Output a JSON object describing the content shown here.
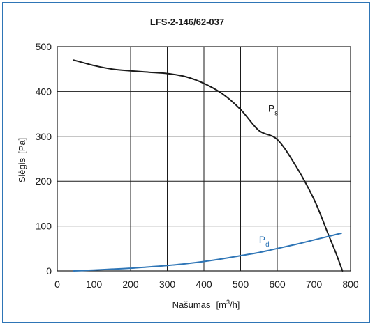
{
  "chart_data": {
    "type": "line",
    "title": "LFS-2-146/62-037",
    "xlabel": {
      "name": "Našumas",
      "unit_open": "[m",
      "unit_sup": "3",
      "unit_close": "/h]"
    },
    "ylabel": {
      "name": "Slėgis",
      "unit": "[Pa]"
    },
    "xlim": [
      0,
      800
    ],
    "ylim": [
      0,
      500
    ],
    "xticks": [
      0,
      100,
      200,
      300,
      400,
      500,
      600,
      700,
      800
    ],
    "yticks": [
      0,
      100,
      200,
      300,
      400,
      500
    ],
    "grid": true,
    "series": [
      {
        "name": "P",
        "subscript": "s",
        "color": "#1a1a1a",
        "x": [
          45,
          100,
          150,
          200,
          250,
          300,
          350,
          400,
          450,
          500,
          550,
          600,
          650,
          700,
          740,
          760,
          778
        ],
        "y": [
          470,
          458,
          450,
          446,
          443,
          440,
          433,
          418,
          395,
          360,
          313,
          293,
          235,
          160,
          80,
          40,
          0
        ]
      },
      {
        "name": "P",
        "subscript": "d",
        "color": "#2e75b6",
        "x": [
          45,
          100,
          150,
          200,
          250,
          300,
          350,
          400,
          450,
          500,
          550,
          600,
          650,
          700,
          750,
          775
        ],
        "y": [
          0,
          2,
          4,
          6,
          9,
          12,
          16,
          21,
          27,
          34,
          41,
          50,
          59,
          69,
          79,
          84
        ]
      }
    ],
    "annotations": [
      {
        "series": 0,
        "x": 575,
        "y": 355
      },
      {
        "series": 1,
        "x": 550,
        "y": 62
      }
    ]
  }
}
